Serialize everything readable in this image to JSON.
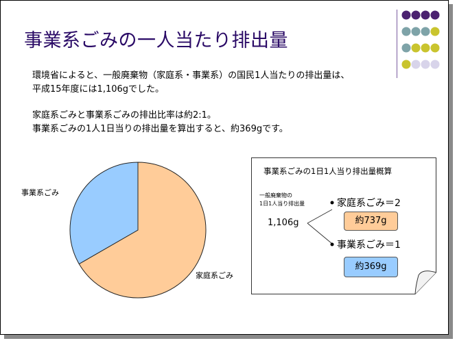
{
  "slide": {
    "title": "事業系ごみの一人当たり排出量",
    "paragraph1_line1": "環境省によると、一般廃棄物（家庭系・事業系）の国民1人当たりの排出量は、",
    "paragraph1_line2": "平成15年度には1,106gでした。",
    "paragraph2_line1": "家庭系ごみと事業系ごみの排出比率は約2:1。",
    "paragraph2_line2": "事業系ごみの1人1日当りの排出量を算出すると、約369gです。"
  },
  "chart_data": {
    "type": "pie",
    "categories": [
      "家庭系ごみ",
      "事業系ごみ"
    ],
    "values": [
      2,
      1
    ],
    "colors": [
      "#ffcc99",
      "#99ccff"
    ]
  },
  "calc_box": {
    "heading": "事業系ごみの1日1人当り排出量概算",
    "left_label_line1": "一般廃棄物の",
    "left_label_line2": "1日1人当り排出量",
    "total": "1,106g",
    "household_label": "家庭系ごみ＝2",
    "household_value": "約737g",
    "business_label": "事業系ごみ＝1",
    "business_value": "約369g",
    "household_color": "#ffcc99",
    "business_color": "#99ccff"
  },
  "decor": {
    "dot_colors": [
      "#4b2170",
      "#7ea3a8",
      "#c9c42e",
      "#d8d4ea"
    ]
  }
}
